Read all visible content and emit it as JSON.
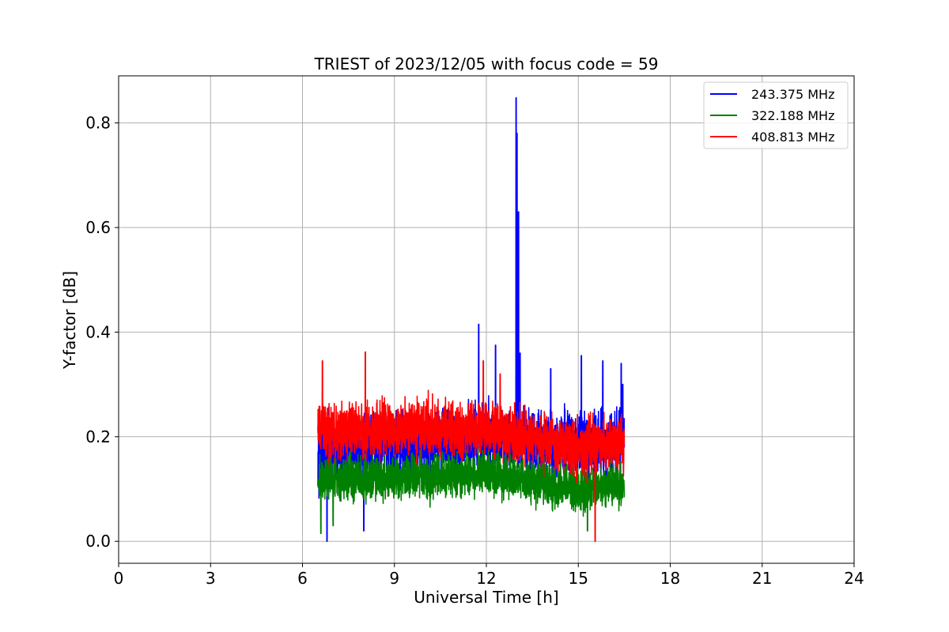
{
  "chart_data": {
    "type": "line",
    "title": "TRIEST of 2023/12/05 with focus code = 59",
    "xlabel": "Universal Time [h]",
    "ylabel": "Y-factor [dB]",
    "xlim": [
      0,
      24
    ],
    "ylim": [
      -0.042,
      0.89
    ],
    "xticks": [
      0,
      3,
      6,
      9,
      12,
      15,
      18,
      21,
      24
    ],
    "yticks": [
      0.0,
      0.2,
      0.4,
      0.6,
      0.8
    ],
    "ytick_labels": [
      "0.0",
      "0.2",
      "0.4",
      "0.6",
      "0.8"
    ],
    "grid": true,
    "legend_position": "top-right",
    "x_range_data": [
      6.5,
      16.5
    ],
    "series": [
      {
        "name": "243.375 MHz",
        "color": "#0000ff",
        "baseline": [
          [
            6.5,
            0.17
          ],
          [
            9,
            0.18
          ],
          [
            12,
            0.2
          ],
          [
            15,
            0.18
          ],
          [
            16.5,
            0.19
          ]
        ],
        "spread": 0.09,
        "spikes": [
          [
            11.75,
            0.415
          ],
          [
            12.3,
            0.375
          ],
          [
            12.97,
            0.848
          ],
          [
            13.0,
            0.78
          ],
          [
            13.05,
            0.63
          ],
          [
            13.1,
            0.36
          ],
          [
            14.1,
            0.33
          ],
          [
            15.1,
            0.355
          ],
          [
            15.8,
            0.345
          ],
          [
            16.4,
            0.34
          ],
          [
            16.45,
            0.3
          ],
          [
            6.8,
            0.0
          ],
          [
            8.0,
            0.02
          ]
        ]
      },
      {
        "name": "322.188 MHz",
        "color": "#008000",
        "baseline": [
          [
            6.5,
            0.12
          ],
          [
            9,
            0.12
          ],
          [
            12,
            0.13
          ],
          [
            15,
            0.1
          ],
          [
            16.5,
            0.11
          ]
        ],
        "spread": 0.06,
        "spikes": [
          [
            6.6,
            0.015
          ],
          [
            7.0,
            0.03
          ],
          [
            15.3,
            0.02
          ]
        ]
      },
      {
        "name": "408.813 MHz",
        "color": "#ff0000",
        "baseline": [
          [
            6.5,
            0.21
          ],
          [
            9,
            0.22
          ],
          [
            12,
            0.21
          ],
          [
            15,
            0.18
          ],
          [
            16.5,
            0.19
          ]
        ],
        "spread": 0.075,
        "spikes": [
          [
            6.65,
            0.345
          ],
          [
            8.05,
            0.362
          ],
          [
            11.9,
            0.345
          ],
          [
            12.45,
            0.32
          ],
          [
            15.55,
            0.0
          ]
        ]
      }
    ]
  }
}
